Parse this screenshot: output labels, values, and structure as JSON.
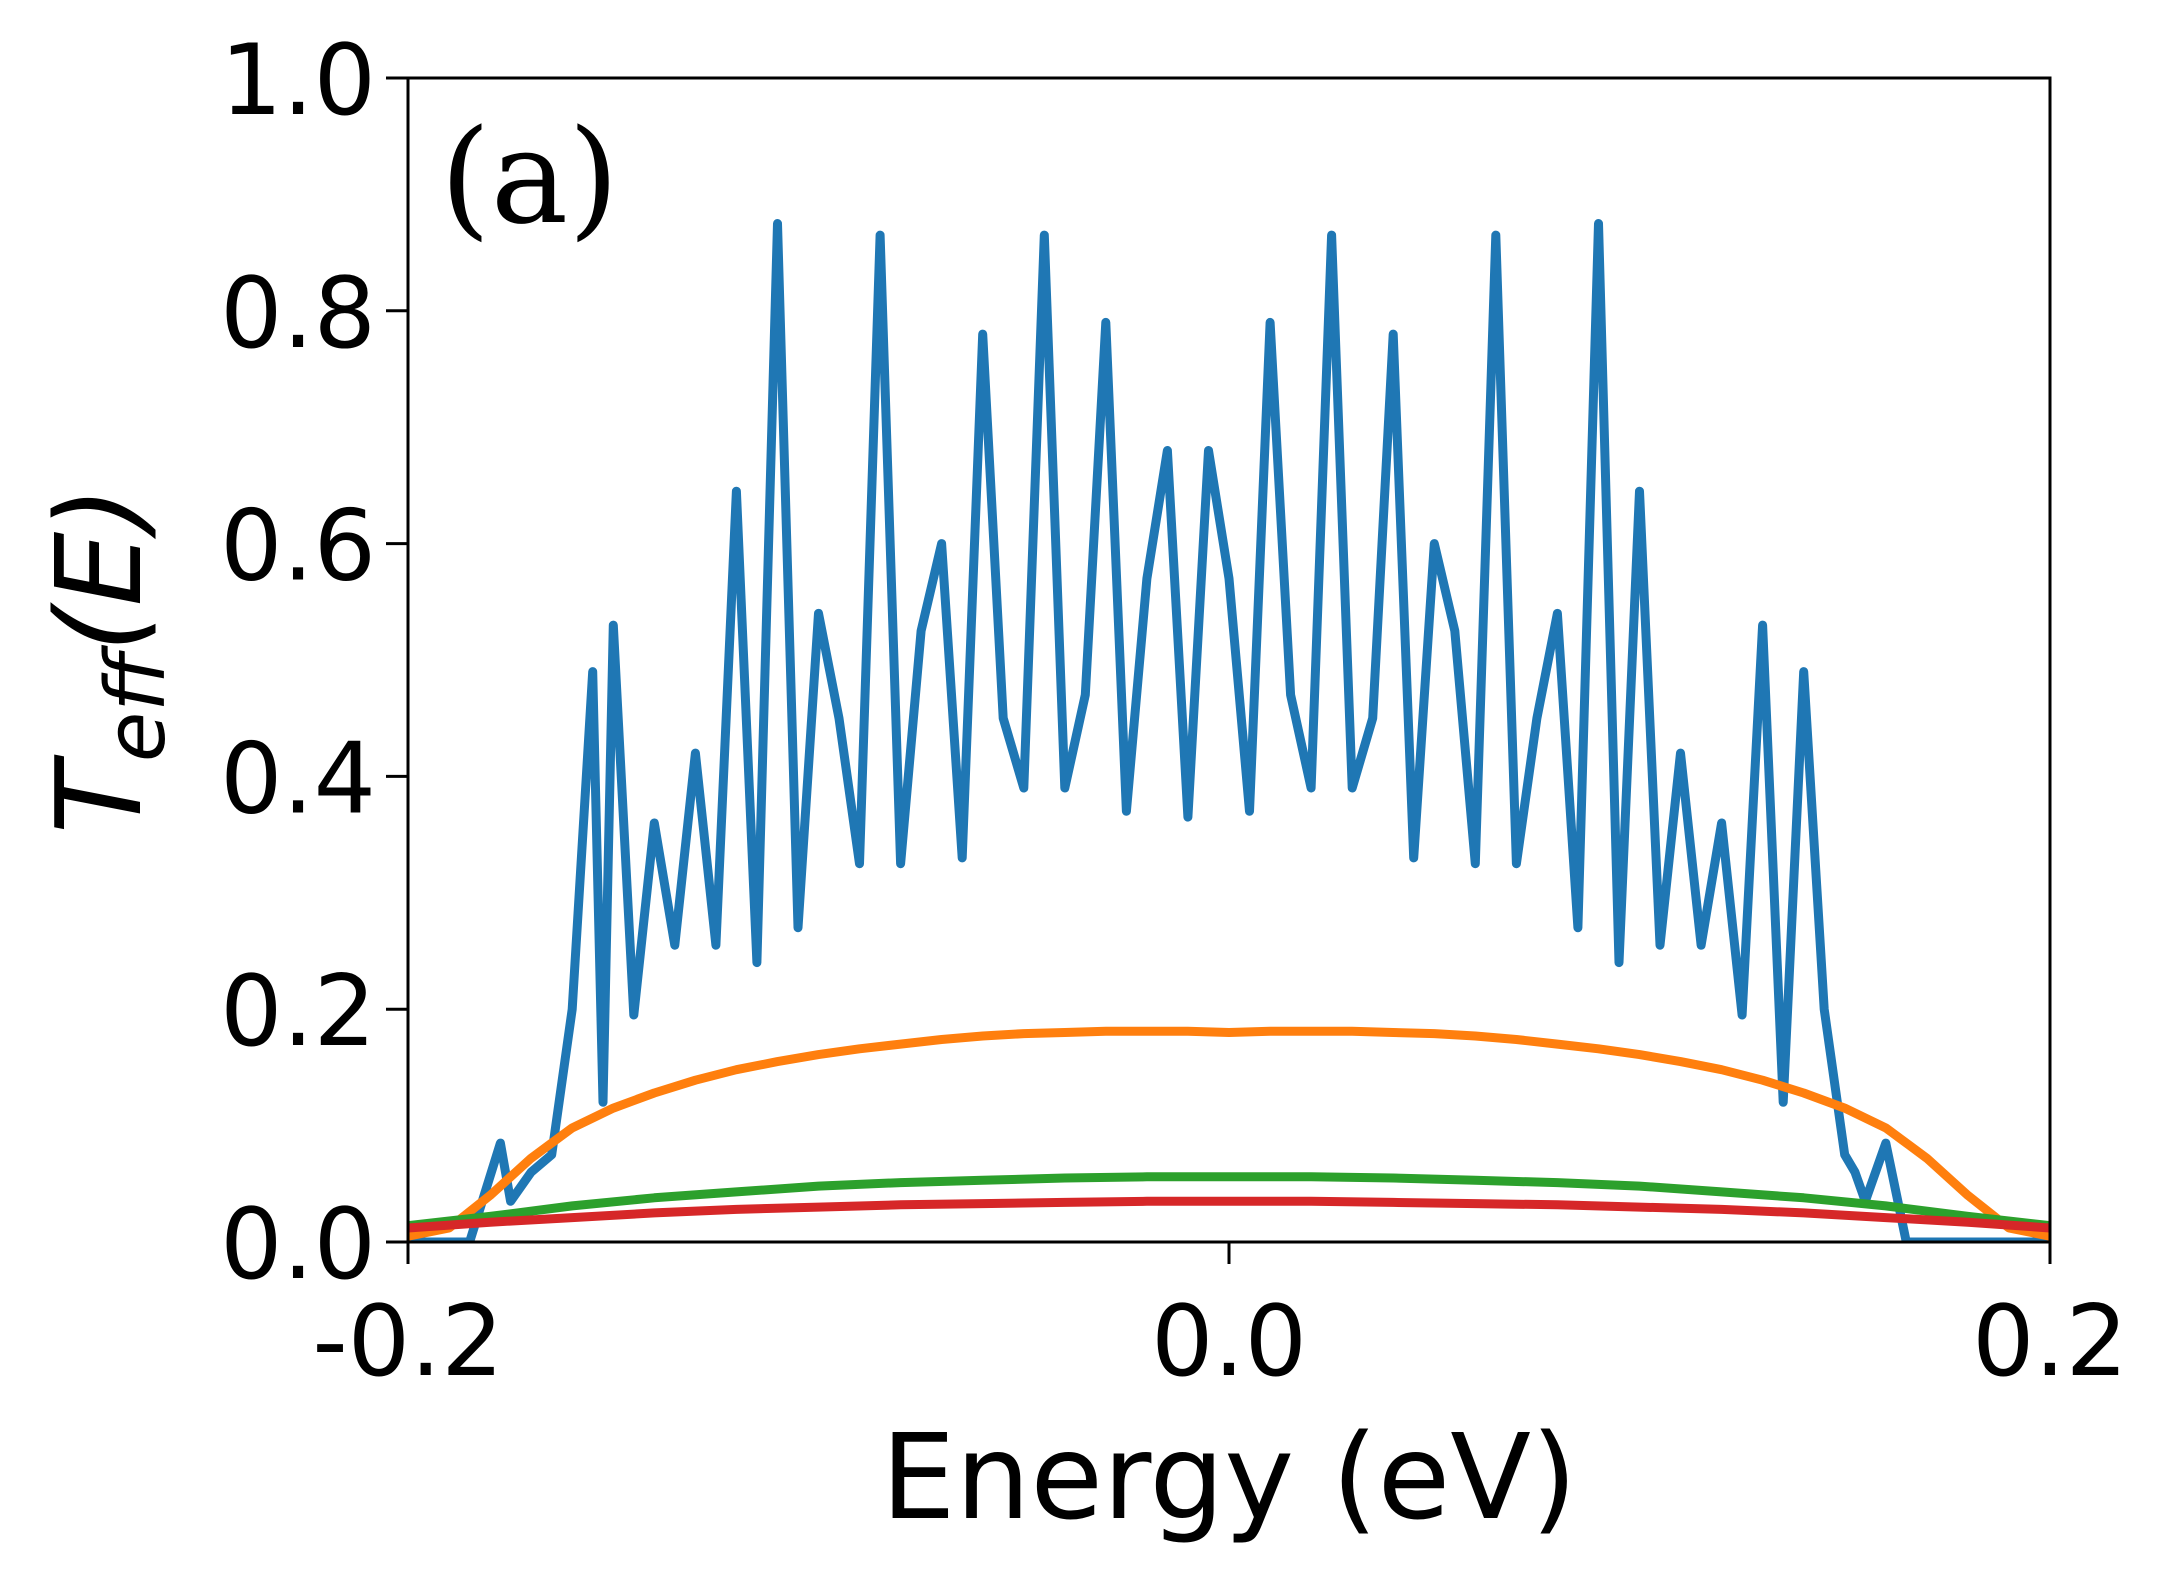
{
  "chart_data": {
    "type": "line",
    "panel_label": "(a)",
    "xlabel": "Energy (eV)",
    "ylabel": {
      "main": "T",
      "subscript": "eff",
      "argument": "(E)"
    },
    "xlim": [
      -0.2,
      0.2
    ],
    "ylim": [
      0.0,
      1.0
    ],
    "xticks": [
      -0.2,
      0.0,
      0.2
    ],
    "xtick_labels": [
      "-0.2",
      "0.0",
      "0.2"
    ],
    "yticks": [
      0.0,
      0.2,
      0.4,
      0.6,
      0.8,
      1.0
    ],
    "ytick_labels": [
      "0.0",
      "0.2",
      "0.4",
      "0.6",
      "0.8",
      "1.0"
    ],
    "grid": false,
    "series": [
      {
        "name": "blue",
        "color": "#1f77b4",
        "x": [
          -0.2,
          -0.19,
          -0.185,
          -0.1775,
          -0.175,
          -0.17,
          -0.165,
          -0.16,
          -0.155,
          -0.1525,
          -0.15,
          -0.145,
          -0.14,
          -0.135,
          -0.13,
          -0.125,
          -0.12,
          -0.115,
          -0.11,
          -0.105,
          -0.1,
          -0.095,
          -0.09,
          -0.085,
          -0.08,
          -0.075,
          -0.07,
          -0.065,
          -0.06,
          -0.055,
          -0.05,
          -0.045,
          -0.04,
          -0.035,
          -0.03,
          -0.025,
          -0.02,
          -0.015,
          -0.01,
          -0.005,
          0.0,
          0.005,
          0.01,
          0.015,
          0.02,
          0.025,
          0.03,
          0.035,
          0.04,
          0.045,
          0.05,
          0.055,
          0.06,
          0.065,
          0.07,
          0.075,
          0.08,
          0.085,
          0.09,
          0.095,
          0.1,
          0.105,
          0.11,
          0.115,
          0.12,
          0.125,
          0.13,
          0.135,
          0.14,
          0.145,
          0.15,
          0.1525,
          0.155,
          0.16,
          0.165,
          0.17,
          0.175,
          0.1775,
          0.185,
          0.19,
          0.2
        ],
        "y": [
          0.0,
          0.0,
          0.0,
          0.085,
          0.035,
          0.06,
          0.075,
          0.2,
          0.49,
          0.12,
          0.53,
          0.195,
          0.36,
          0.255,
          0.42,
          0.255,
          0.645,
          0.24,
          0.875,
          0.27,
          0.54,
          0.45,
          0.325,
          0.865,
          0.325,
          0.525,
          0.6,
          0.33,
          0.78,
          0.45,
          0.39,
          0.865,
          0.39,
          0.47,
          0.79,
          0.37,
          0.57,
          0.68,
          0.365,
          0.68,
          0.57,
          0.37,
          0.79,
          0.47,
          0.39,
          0.865,
          0.39,
          0.45,
          0.78,
          0.33,
          0.6,
          0.525,
          0.325,
          0.865,
          0.325,
          0.45,
          0.54,
          0.27,
          0.875,
          0.24,
          0.645,
          0.255,
          0.42,
          0.255,
          0.36,
          0.195,
          0.53,
          0.12,
          0.49,
          0.2,
          0.075,
          0.06,
          0.035,
          0.085,
          0.0,
          0.0,
          0.0,
          0.0,
          0.0,
          0.0,
          0.0
        ]
      },
      {
        "name": "orange",
        "color": "#ff7f0e",
        "x": [
          -0.2,
          -0.19,
          -0.18,
          -0.17,
          -0.16,
          -0.15,
          -0.14,
          -0.13,
          -0.12,
          -0.11,
          -0.1,
          -0.09,
          -0.08,
          -0.07,
          -0.06,
          -0.05,
          -0.04,
          -0.03,
          -0.02,
          -0.01,
          0.0,
          0.01,
          0.02,
          0.03,
          0.04,
          0.05,
          0.06,
          0.07,
          0.08,
          0.09,
          0.1,
          0.11,
          0.12,
          0.13,
          0.14,
          0.15,
          0.16,
          0.17,
          0.18,
          0.19,
          0.2
        ],
        "y": [
          0.005,
          0.012,
          0.04,
          0.072,
          0.098,
          0.115,
          0.128,
          0.139,
          0.148,
          0.155,
          0.161,
          0.166,
          0.17,
          0.174,
          0.177,
          0.179,
          0.18,
          0.181,
          0.181,
          0.181,
          0.18,
          0.181,
          0.181,
          0.181,
          0.18,
          0.179,
          0.177,
          0.174,
          0.17,
          0.166,
          0.161,
          0.155,
          0.148,
          0.139,
          0.128,
          0.115,
          0.098,
          0.072,
          0.04,
          0.012,
          0.005
        ]
      },
      {
        "name": "green",
        "color": "#2ca02c",
        "x": [
          -0.2,
          -0.18,
          -0.16,
          -0.14,
          -0.12,
          -0.1,
          -0.08,
          -0.06,
          -0.04,
          -0.02,
          0.0,
          0.02,
          0.04,
          0.06,
          0.08,
          0.1,
          0.12,
          0.14,
          0.16,
          0.18,
          0.2
        ],
        "y": [
          0.014,
          0.022,
          0.031,
          0.038,
          0.043,
          0.048,
          0.051,
          0.053,
          0.055,
          0.056,
          0.056,
          0.056,
          0.055,
          0.053,
          0.051,
          0.048,
          0.043,
          0.038,
          0.031,
          0.022,
          0.014
        ]
      },
      {
        "name": "red",
        "color": "#d62728",
        "x": [
          -0.2,
          -0.18,
          -0.16,
          -0.14,
          -0.12,
          -0.1,
          -0.08,
          -0.06,
          -0.04,
          -0.02,
          0.0,
          0.02,
          0.04,
          0.06,
          0.08,
          0.1,
          0.12,
          0.14,
          0.16,
          0.18,
          0.2
        ],
        "y": [
          0.012,
          0.017,
          0.021,
          0.025,
          0.028,
          0.03,
          0.032,
          0.033,
          0.034,
          0.035,
          0.035,
          0.035,
          0.034,
          0.033,
          0.032,
          0.03,
          0.028,
          0.025,
          0.021,
          0.017,
          0.012
        ]
      }
    ]
  }
}
